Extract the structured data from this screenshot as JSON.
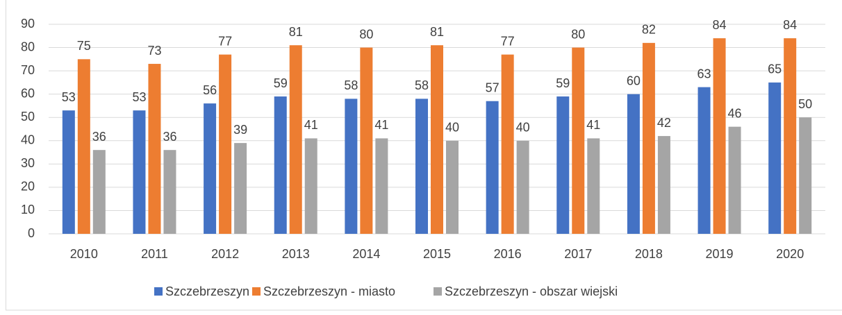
{
  "chart_data": {
    "type": "bar",
    "categories": [
      "2010",
      "2011",
      "2012",
      "2013",
      "2014",
      "2015",
      "2016",
      "2017",
      "2018",
      "2019",
      "2020"
    ],
    "series": [
      {
        "name": "Szczebrzeszyn",
        "color": "#4472c4",
        "values": [
          53,
          53,
          56,
          59,
          58,
          58,
          57,
          59,
          60,
          63,
          65
        ]
      },
      {
        "name": "Szczebrzeszyn - miasto",
        "color": "#ed7d31",
        "values": [
          75,
          73,
          77,
          81,
          80,
          81,
          77,
          80,
          82,
          84,
          84
        ]
      },
      {
        "name": "Szczebrzeszyn - obszar wiejski",
        "color": "#a5a5a5",
        "values": [
          36,
          36,
          39,
          41,
          41,
          40,
          40,
          41,
          42,
          46,
          50
        ]
      }
    ],
    "ylim": [
      0,
      90
    ],
    "yticks": [
      0,
      10,
      20,
      30,
      40,
      50,
      60,
      70,
      80,
      90
    ],
    "grid": true,
    "legend": "bottom"
  }
}
